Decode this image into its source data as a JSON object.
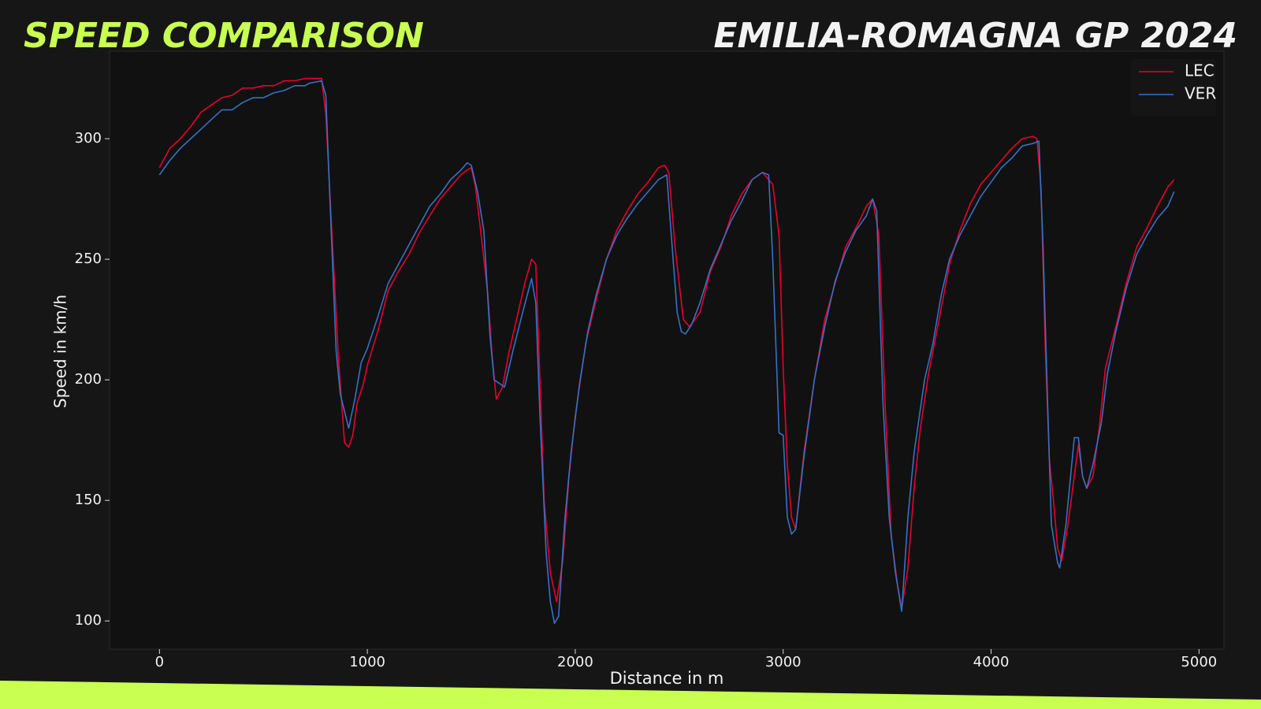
{
  "chart_data": {
    "type": "line",
    "title": "SPEED COMPARISON",
    "subtitle": "EMILIA-ROMAGNA GP 2024",
    "x_label": "Distance in m",
    "y_label": "Speed in km/h",
    "xlim": [
      -240,
      5120
    ],
    "ylim": [
      88.3,
      336.3
    ],
    "xticks": [
      0,
      1000,
      2000,
      3000,
      4000,
      5000
    ],
    "yticks": [
      100,
      150,
      200,
      250,
      300
    ],
    "legend": "upper right",
    "series": [
      {
        "name": "LEC",
        "color": "#e8002d",
        "x": [
          0,
          50,
          100,
          150,
          200,
          250,
          300,
          350,
          400,
          450,
          500,
          550,
          600,
          650,
          700,
          780,
          800,
          830,
          860,
          890,
          910,
          930,
          950,
          980,
          1000,
          1050,
          1100,
          1150,
          1200,
          1250,
          1300,
          1350,
          1400,
          1450,
          1480,
          1500,
          1520,
          1550,
          1580,
          1600,
          1620,
          1650,
          1680,
          1720,
          1760,
          1790,
          1810,
          1830,
          1850,
          1880,
          1910,
          1940,
          1970,
          2000,
          2050,
          2100,
          2150,
          2200,
          2250,
          2300,
          2350,
          2400,
          2430,
          2450,
          2480,
          2500,
          2520,
          2550,
          2600,
          2650,
          2700,
          2750,
          2800,
          2850,
          2900,
          2950,
          2980,
          3000,
          3020,
          3040,
          3060,
          3100,
          3150,
          3200,
          3250,
          3300,
          3350,
          3400,
          3430,
          3460,
          3490,
          3520,
          3550,
          3570,
          3600,
          3630,
          3660,
          3700,
          3750,
          3800,
          3850,
          3900,
          3950,
          4000,
          4050,
          4100,
          4150,
          4200,
          4220,
          4240,
          4260,
          4280,
          4300,
          4320,
          4340,
          4370,
          4400,
          4420,
          4440,
          4460,
          4490,
          4520,
          4550,
          4600,
          4650,
          4700,
          4750,
          4800,
          4850,
          4880
        ],
        "values": [
          288,
          296,
          300,
          305,
          311,
          314,
          317,
          318,
          321,
          321,
          322,
          322,
          324,
          324,
          325,
          325,
          310,
          260,
          210,
          174,
          172,
          177,
          190,
          198,
          206,
          220,
          237,
          245,
          252,
          261,
          268,
          275,
          280,
          285,
          287,
          288,
          280,
          258,
          235,
          210,
          192,
          197,
          211,
          226,
          241,
          250,
          248,
          200,
          150,
          120,
          108,
          125,
          160,
          185,
          215,
          233,
          250,
          262,
          270,
          277,
          282,
          288,
          289,
          286,
          255,
          240,
          225,
          222,
          228,
          245,
          255,
          268,
          277,
          283,
          286,
          281,
          260,
          205,
          165,
          143,
          138,
          170,
          200,
          225,
          240,
          255,
          263,
          272,
          275,
          260,
          190,
          135,
          115,
          105,
          122,
          155,
          180,
          203,
          225,
          248,
          262,
          273,
          281,
          286,
          291,
          296,
          300,
          301,
          300,
          280,
          215,
          167,
          150,
          130,
          125,
          140,
          160,
          173,
          160,
          155,
          160,
          180,
          205,
          222,
          240,
          255,
          263,
          272,
          280,
          283
        ]
      },
      {
        "name": "VER",
        "color": "#3671c6",
        "x": [
          0,
          50,
          100,
          150,
          200,
          250,
          300,
          350,
          400,
          450,
          500,
          550,
          600,
          650,
          700,
          720,
          780,
          800,
          820,
          850,
          870,
          910,
          940,
          970,
          1000,
          1050,
          1100,
          1150,
          1200,
          1250,
          1300,
          1350,
          1400,
          1450,
          1480,
          1500,
          1530,
          1560,
          1590,
          1610,
          1660,
          1700,
          1750,
          1790,
          1810,
          1830,
          1860,
          1880,
          1900,
          1920,
          1950,
          1980,
          2020,
          2060,
          2100,
          2150,
          2200,
          2250,
          2300,
          2350,
          2400,
          2440,
          2460,
          2490,
          2510,
          2530,
          2560,
          2600,
          2650,
          2700,
          2750,
          2800,
          2850,
          2900,
          2930,
          2950,
          2980,
          3000,
          3020,
          3040,
          3060,
          3100,
          3150,
          3200,
          3250,
          3300,
          3350,
          3400,
          3430,
          3450,
          3480,
          3510,
          3540,
          3570,
          3600,
          3630,
          3680,
          3720,
          3760,
          3800,
          3850,
          3900,
          3950,
          4000,
          4050,
          4100,
          4150,
          4200,
          4230,
          4250,
          4270,
          4290,
          4320,
          4330,
          4360,
          4400,
          4420,
          4440,
          4460,
          4490,
          4530,
          4560,
          4600,
          4650,
          4700,
          4750,
          4800,
          4850,
          4880
        ],
        "values": [
          285,
          291,
          296,
          300,
          304,
          308,
          312,
          312,
          315,
          317,
          317,
          319,
          320,
          322,
          322,
          323,
          324,
          318,
          275,
          212,
          194,
          180,
          192,
          207,
          213,
          226,
          240,
          248,
          256,
          264,
          272,
          277,
          283,
          287,
          290,
          289,
          278,
          262,
          218,
          200,
          197,
          212,
          229,
          242,
          232,
          185,
          128,
          108,
          99,
          102,
          142,
          170,
          198,
          220,
          235,
          250,
          260,
          267,
          273,
          278,
          283,
          285,
          262,
          228,
          220,
          219,
          223,
          232,
          246,
          256,
          266,
          274,
          283,
          286,
          285,
          250,
          178,
          177,
          143,
          136,
          138,
          168,
          200,
          222,
          241,
          253,
          262,
          268,
          275,
          270,
          190,
          143,
          120,
          104,
          143,
          170,
          200,
          215,
          235,
          250,
          260,
          268,
          276,
          282,
          288,
          292,
          297,
          298,
          299,
          255,
          195,
          140,
          124,
          122,
          140,
          176,
          176,
          160,
          155,
          165,
          182,
          203,
          220,
          238,
          252,
          260,
          267,
          272,
          278
        ]
      }
    ]
  }
}
